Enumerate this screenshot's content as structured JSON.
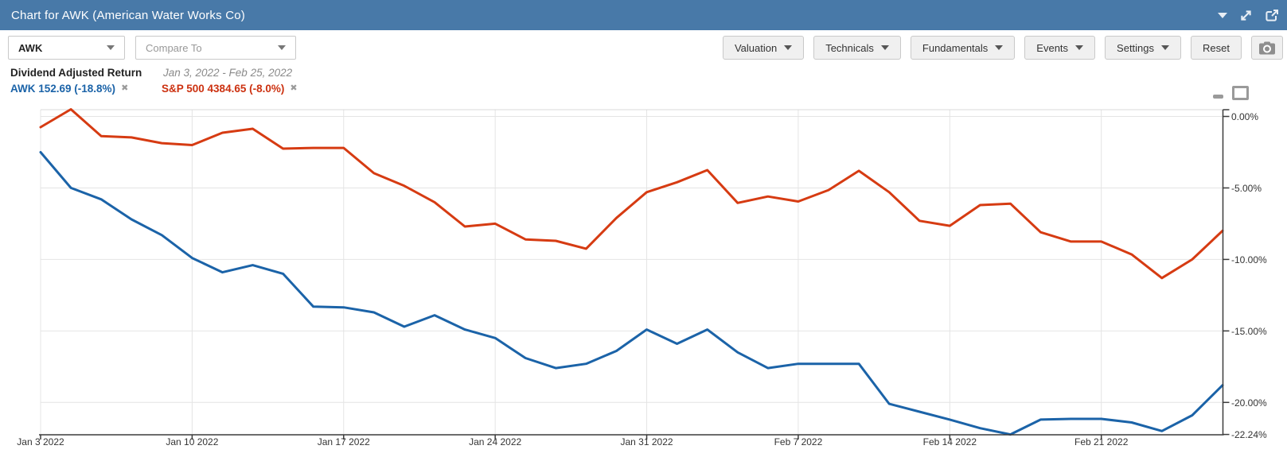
{
  "header": {
    "title": "Chart for AWK (American Water Works Co)",
    "icons": [
      "chevron-down-icon",
      "fullscreen-icon",
      "external-link-icon"
    ]
  },
  "toolbar": {
    "symbol_value": "AWK",
    "compare_placeholder": "Compare To",
    "menus": [
      "Valuation",
      "Technicals",
      "Fundamentals",
      "Events",
      "Settings"
    ],
    "reset_label": "Reset",
    "camera_icon": "camera-icon"
  },
  "legend": {
    "title": "Dividend Adjusted Return",
    "date_range": "Jan 3, 2022 - Feb 25, 2022",
    "entries": [
      {
        "label": "AWK 152.69 (-18.8%)",
        "color": "#1b63a8",
        "remove_glyph": "✖"
      },
      {
        "label": "S&P 500 4384.65 (-8.0%)",
        "color": "#cc3110",
        "remove_glyph": "✖"
      }
    ]
  },
  "chart_data": {
    "type": "line",
    "title": "Dividend Adjusted Return",
    "subtitle": "Jan 3, 2022 - Feb 25, 2022",
    "unit": "percent",
    "grid": true,
    "legend_position": "top-left",
    "ylim": [
      -22.24,
      0.47
    ],
    "x_categories": [
      "Jan 3",
      "Jan 4",
      "Jan 5",
      "Jan 6",
      "Jan 7",
      "Jan 10",
      "Jan 11",
      "Jan 12",
      "Jan 13",
      "Jan 14",
      "Jan 17",
      "Jan 18",
      "Jan 19",
      "Jan 20",
      "Jan 21",
      "Jan 24",
      "Jan 25",
      "Jan 26",
      "Jan 27",
      "Jan 28",
      "Jan 31",
      "Feb 1",
      "Feb 2",
      "Feb 3",
      "Feb 4",
      "Feb 7",
      "Feb 8",
      "Feb 9",
      "Feb 10",
      "Feb 11",
      "Feb 14",
      "Feb 15",
      "Feb 16",
      "Feb 17",
      "Feb 18",
      "Feb 21",
      "Feb 22",
      "Feb 23",
      "Feb 24",
      "Feb 25"
    ],
    "x_tick_indices": [
      0,
      5,
      10,
      15,
      20,
      25,
      30,
      35
    ],
    "x_tick_labels": [
      "Jan 3 2022",
      "Jan 10 2022",
      "Jan 17 2022",
      "Jan 24 2022",
      "Jan 31 2022",
      "Feb 7 2022",
      "Feb 14 2022",
      "Feb 21 2022"
    ],
    "y_ticks": [
      {
        "label": "0.00%",
        "value": 0
      },
      {
        "label": "-5.00%",
        "value": -5
      },
      {
        "label": "-10.00%",
        "value": -10
      },
      {
        "label": "-15.00%",
        "value": -15
      },
      {
        "label": "-20.00%",
        "value": -20
      },
      {
        "label": "-22.24%",
        "value": -22.24
      }
    ],
    "series": [
      {
        "name": "AWK",
        "color": "#1b63a8",
        "last_value_label": "152.69 (-18.8%)",
        "values": [
          -2.5,
          -5.0,
          -5.8,
          -7.2,
          -8.3,
          -9.9,
          -10.9,
          -10.4,
          -11.0,
          -13.3,
          -13.35,
          -13.7,
          -14.7,
          -13.9,
          -14.9,
          -15.5,
          -16.9,
          -17.6,
          -17.3,
          -16.4,
          -14.9,
          -15.9,
          -14.9,
          -16.5,
          -17.6,
          -17.3,
          -17.3,
          -17.3,
          -20.1,
          -20.65,
          -21.2,
          -21.8,
          -22.24,
          -21.2,
          -21.15,
          -21.15,
          -21.4,
          -22.0,
          -20.9,
          -18.8
        ]
      },
      {
        "name": "S&P 500",
        "color": "#d63b12",
        "last_value_label": "4384.65 (-8.0%)",
        "values": [
          -0.75,
          0.5,
          -1.38,
          -1.47,
          -1.87,
          -2.0,
          -1.14,
          -0.86,
          -2.25,
          -2.2,
          -2.2,
          -3.97,
          -4.85,
          -6.0,
          -7.7,
          -7.5,
          -8.6,
          -8.7,
          -9.25,
          -7.1,
          -5.3,
          -4.6,
          -3.75,
          -6.05,
          -5.6,
          -5.95,
          -5.15,
          -3.8,
          -5.3,
          -7.3,
          -7.65,
          -6.2,
          -6.1,
          -8.1,
          -8.75,
          -8.75,
          -9.65,
          -11.3,
          -10.0,
          -8.0
        ]
      }
    ],
    "colors": {
      "grid": "#e4e4e4",
      "plot_border": "#d8d8d8",
      "axis": "#3c3c3c",
      "tick_text": "#333333"
    }
  }
}
